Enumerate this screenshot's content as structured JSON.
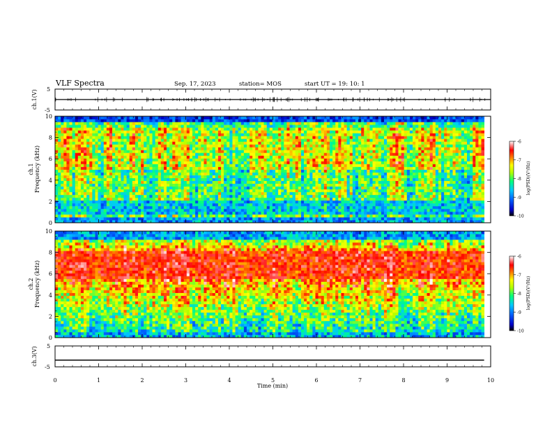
{
  "header": {
    "title": "VLF Spectra",
    "date": "Sep. 17, 2023",
    "station": "station= MOS",
    "start": "start  UT =   19: 10: 1"
  },
  "chart_data": {
    "type": "heatmap",
    "x_axis": {
      "label": "Time  (min)",
      "range": [
        0,
        10
      ],
      "ticks": [
        "0",
        "1",
        "2",
        "3",
        "4",
        "5",
        "6",
        "7",
        "8",
        "9",
        "10"
      ]
    },
    "panels": [
      {
        "id": "ch1-waveform",
        "ylabel": "ch.1(V)",
        "yticks": [
          "5",
          "-5"
        ],
        "ylim": [
          -5,
          5
        ],
        "trace_level": 0
      },
      {
        "id": "ch1-spectrogram",
        "ylabel_line1": "ch.1",
        "ylabel_line2": "Frequency (kHz)",
        "yticks": [
          "0",
          "2",
          "4",
          "6",
          "8",
          "10"
        ],
        "ylim": [
          0,
          10
        ],
        "data_end_min": 9.85,
        "dominant_band_khz": [
          5,
          9
        ],
        "quiet_band_khz": [
          0.8,
          2
        ]
      },
      {
        "id": "ch2-spectrogram",
        "ylabel_line1": "ch.2",
        "ylabel_line2": "Frequency (kHz)",
        "yticks": [
          "0",
          "2",
          "4",
          "6",
          "8",
          "10"
        ],
        "ylim": [
          0,
          10
        ],
        "data_end_min": 9.85,
        "dominant_band_khz": [
          5.5,
          8.2
        ]
      },
      {
        "id": "ch3-waveform",
        "ylabel": "ch.3(V)",
        "yticks": [
          "5",
          "-5"
        ],
        "ylim": [
          -5,
          5
        ],
        "trace_level": -1.8
      }
    ],
    "colorbar": {
      "label": "log(PSD)(V²/Hz)",
      "ticks": [
        "-6",
        "-7",
        "-8",
        "-9",
        "-10"
      ],
      "range": [
        -10,
        -6
      ],
      "colors": [
        "#000000",
        "#0000ff",
        "#00aaff",
        "#00ff80",
        "#aaff00",
        "#ffff00",
        "#ff8000",
        "#ff0000",
        "#ffffff"
      ]
    }
  }
}
